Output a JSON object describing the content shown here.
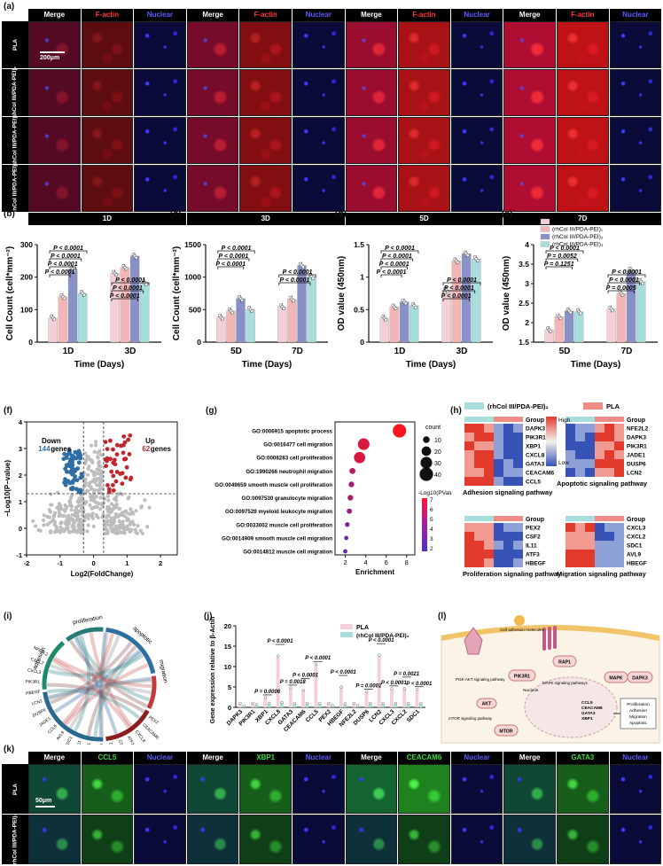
{
  "panel_letters": {
    "a": "(a)",
    "b": "(b)",
    "c": "(c)",
    "d": "(d)",
    "e": "(e)",
    "f": "(f)",
    "g": "(g)",
    "h": "(h)",
    "i": "(i)",
    "j": "(j)",
    "k": "(k)",
    "l": "(l)"
  },
  "panel_a": {
    "headers": [
      "Merge",
      "F-actin",
      "Nuclear",
      "Merge",
      "F-actin",
      "Nuclear",
      "Merge",
      "F-actin",
      "Nuclear",
      "Merge",
      "F-actin",
      "Nuclear"
    ],
    "rows": [
      "PLA",
      "(rhCol III/PDA-PEI)₁",
      "(rhCol III/PDA-PEI)₂",
      "(rhCol III/PDA-PEI)₃"
    ],
    "days": [
      "1D",
      "3D",
      "5D",
      "7D"
    ],
    "scale": "200μm"
  },
  "panel_k": {
    "headers": [
      "Merge",
      "CCL5",
      "Nuclear",
      "Merge",
      "XBP1",
      "Nuclear",
      "Merge",
      "CEACAM6",
      "Nuclear",
      "Merge",
      "GATA3",
      "Nuclear"
    ],
    "rows": [
      "PLA",
      "(rhCol III/PDA-PEI)₂"
    ],
    "scale": "50μm"
  },
  "chart_data": [
    {
      "type": "bar",
      "id": "b",
      "ylabel": "Cell Count (cell*mm⁻²)",
      "xlabel": "Time (Days)",
      "categories": [
        "1D",
        "3D"
      ],
      "ylim": [
        0,
        300
      ],
      "yticks": [
        0,
        100,
        200,
        300
      ],
      "series": [
        {
          "name": "PLA",
          "values": [
            75,
            212
          ]
        },
        {
          "name": "(rhCol III/PDA-PEI)₁",
          "values": [
            140,
            230
          ]
        },
        {
          "name": "(rhCol III/PDA-PEI)₂",
          "values": [
            225,
            265
          ]
        },
        {
          "name": "(rhCol III/PDA-PEI)₃",
          "values": [
            150,
            183
          ]
        }
      ],
      "pvalues": [
        "P < 0.0001",
        "P < 0.0001",
        "P < 0.0001",
        "P < 0.0001",
        "P < 0.0001",
        "P < 0.0001",
        "P < 0.0001"
      ]
    },
    {
      "type": "bar",
      "id": "c",
      "ylabel": "Cell Count (cell*mm⁻²)",
      "xlabel": "Time (Days)",
      "categories": [
        "5D",
        "7D"
      ],
      "ylim": [
        0,
        1500
      ],
      "yticks": [
        0,
        500,
        1000,
        1500
      ],
      "series": [
        {
          "name": "PLA",
          "values": [
            385,
            545
          ]
        },
        {
          "name": "(rhCol III/PDA-PEI)₁",
          "values": [
            480,
            660
          ]
        },
        {
          "name": "(rhCol III/PDA-PEI)₂",
          "values": [
            670,
            1180
          ]
        },
        {
          "name": "(rhCol III/PDA-PEI)₃",
          "values": [
            505,
            1010
          ]
        }
      ],
      "pvalues": [
        "P < 0.0001",
        "P < 0.0001",
        "P < 0.0001",
        "P < 0.0001",
        "P < 0.0001"
      ]
    },
    {
      "type": "bar",
      "id": "d",
      "ylabel": "OD value (450nm)",
      "xlabel": "Time (Days)",
      "categories": [
        "1D",
        "3D"
      ],
      "ylim": [
        0.0,
        1.5
      ],
      "yticks": [
        0.0,
        0.5,
        1.0,
        1.5
      ],
      "series": [
        {
          "name": "PLA",
          "values": [
            0.37,
            0.8
          ]
        },
        {
          "name": "(rhCol III/PDA-PEI)₁",
          "values": [
            0.54,
            1.25
          ]
        },
        {
          "name": "(rhCol III/PDA-PEI)₂",
          "values": [
            0.62,
            1.36
          ]
        },
        {
          "name": "(rhCol III/PDA-PEI)₃",
          "values": [
            0.56,
            1.28
          ]
        }
      ],
      "pvalues": [
        "P < 0.0001",
        "P < 0.0001",
        "P < 0.0001",
        "P < 0.0001",
        "P < 0.0001",
        "P < 0.0001",
        "P < 0.0001"
      ]
    },
    {
      "type": "bar",
      "id": "e",
      "ylabel": "OD value (450nm)",
      "xlabel": "Time (Days)",
      "categories": [
        "5D",
        "7D"
      ],
      "ylim": [
        1.5,
        4.0
      ],
      "yticks": [
        1.5,
        2.0,
        2.5,
        3.0,
        3.5,
        4.0
      ],
      "legend": [
        "PLA",
        "(rhCol III/PDA-PEI)₁",
        "(rhCol III/PDA-PEI)₂",
        "(rhCol III/PDA-PEI)₃"
      ],
      "series": [
        {
          "name": "PLA",
          "values": [
            1.82,
            2.35
          ]
        },
        {
          "name": "(rhCol III/PDA-PEI)₁",
          "values": [
            2.15,
            2.75
          ]
        },
        {
          "name": "(rhCol III/PDA-PEI)₂",
          "values": [
            2.3,
            3.35
          ]
        },
        {
          "name": "(rhCol III/PDA-PEI)₃",
          "values": [
            2.28,
            3.05
          ]
        }
      ],
      "pvalues": [
        "P < 0.0001",
        "P = 0.0052",
        "P = 0.1251",
        "P < 0.0001",
        "P < 0.0001",
        "P = 0.0005"
      ]
    },
    {
      "type": "scatter",
      "id": "f",
      "xlabel": "Log2(FoldChange)",
      "ylabel": "−Log10(P−value)",
      "xlim": [
        -2,
        2.5
      ],
      "ylim": [
        -1,
        4
      ],
      "xticks": [
        "-2",
        "-1",
        "0",
        "1",
        "2"
      ],
      "yticks": [
        "-1",
        "0",
        "1",
        "2",
        "3",
        "4"
      ],
      "down_label": "Down",
      "down_count": "144",
      "up_label": "Up",
      "up_count": "62",
      "genes": "genes"
    },
    {
      "type": "scatter",
      "id": "g",
      "xlabel": "Enrichment",
      "xticks": [
        "2",
        "4",
        "6",
        "8"
      ],
      "terms": [
        {
          "label": "GO:0006915 apoptotic process",
          "x": 7.3,
          "count": 40,
          "p": 7
        },
        {
          "label": "GO:0016477 cell migration",
          "x": 3.8,
          "count": 30,
          "p": 6
        },
        {
          "label": "GO:0008283 cell proliferation",
          "x": 3.4,
          "count": 28,
          "p": 6
        },
        {
          "label": "GO:1990266 neutrophil migration",
          "x": 2.7,
          "count": 8,
          "p": 5
        },
        {
          "label": "GO:0049659 smooth muscle cell proliferation",
          "x": 2.6,
          "count": 7,
          "p": 4.5
        },
        {
          "label": "GO:0097530 granulocyte migration",
          "x": 2.5,
          "count": 7,
          "p": 4.5
        },
        {
          "label": "GO:0097529 myeloid leukocyte migration",
          "x": 2.4,
          "count": 6,
          "p": 4
        },
        {
          "label": "GO:0033002 muscle cell proliferation",
          "x": 2.2,
          "count": 5,
          "p": 3.5
        },
        {
          "label": "GO:0014909 smooth muscle cell migration",
          "x": 2.1,
          "count": 4,
          "p": 3
        },
        {
          "label": "GO:0014812 muscle cell migration",
          "x": 2.0,
          "count": 4,
          "p": 2.5
        }
      ],
      "size_legend_title": "count",
      "size_legend": [
        "10",
        "20",
        "30",
        "40"
      ],
      "color_legend_title": "-Log10(PValue)",
      "color_legend": [
        "7",
        "6",
        "5",
        "4",
        "3",
        "2"
      ]
    },
    {
      "type": "heatmap",
      "id": "h",
      "legend_groups": [
        "(rhCol III/PDA-PEI)₂",
        "PLA"
      ],
      "scale_high": "High",
      "scale_low": "Low",
      "group_label": "Group",
      "blocks": [
        {
          "title": "Adhesion signaling pathway",
          "genes": [
            "DAPK3",
            "PIK3R1",
            "XBP1",
            "CXCL8",
            "GATA3",
            "CEACAM6",
            "CCL5"
          ]
        },
        {
          "title": "Apoptotic signaling pathway",
          "genes": [
            "NFE2L2",
            "DAPK3",
            "PIK3R1",
            "JADE1",
            "DUSP6",
            "LCN2"
          ]
        },
        {
          "title": "Proliferation signaling pathway",
          "genes": [
            "PEX2",
            "CSF2",
            "IL11",
            "ATF3",
            "HBEGF"
          ]
        },
        {
          "title": "Migration signaling pathway",
          "genes": [
            "CXCL3",
            "CXCL2",
            "SDC1",
            "AVL9",
            "HBEGF"
          ]
        }
      ]
    },
    {
      "type": "other",
      "id": "i",
      "chart": "chord",
      "sectors": [
        "proliferation",
        "apoptotic",
        "migration",
        "adhesion"
      ],
      "genes": [
        "PEX2",
        "CEACAM6",
        "CXCL8",
        "ATF3",
        "CSF2",
        "DAPK3",
        "GATA3",
        "XBP1",
        "IL11",
        "SDC1",
        "AVL9",
        "CCL5",
        "JADE1",
        "DUSP6",
        "LCN2",
        "HBEGF",
        "PIK3R1",
        "CXCL3",
        "CXCL2",
        "NFE2L2"
      ]
    },
    {
      "type": "bar",
      "id": "j",
      "ylabel": "Gene expression relative to β-Actin",
      "ylim": [
        0,
        20
      ],
      "yticks": [
        0,
        5,
        10,
        15,
        20
      ],
      "categories": [
        "DAPK3",
        "PIK3R1",
        "XBP1",
        "CXCL8",
        "GATA3",
        "CEACAM6",
        "CCL5",
        "PEX2",
        "HBEGF",
        "NFE2L2",
        "DUSP6",
        "LCN2",
        "CXCL3",
        "CXCL2",
        "SDC1"
      ],
      "series": [
        {
          "name": "PLA",
          "values": [
            1.0,
            1.0,
            2.4,
            12.6,
            4.8,
            4.2,
            10.6,
            1.0,
            5.0,
            1.0,
            3.8,
            12.8,
            4.6,
            4.6,
            4.4
          ]
        },
        {
          "name": "(rhCol III/PDA-PEI)₂",
          "values": [
            0.4,
            0.7,
            1.0,
            1.2,
            1.0,
            1.0,
            1.0,
            0.5,
            0.9,
            0.5,
            1.0,
            1.0,
            1.0,
            1.0,
            1.0
          ]
        }
      ],
      "pvalues": [
        "P = 0.0006",
        "P < 0.0001",
        "P = 0.0018",
        "P < 0.0001",
        "P < 0.0001",
        "P < 0.0001",
        "P = 0.0001",
        "P < 0.0001",
        "P < 0.0001",
        "P = 0.0021",
        "P < 0.0001"
      ]
    }
  ],
  "panel_l": {
    "labels": [
      "Cell adhesion molecules",
      "PI3K-AKT signaling pathway",
      "PIK3R1",
      "MAPK signaling pathways",
      "RAP1",
      "MAPK",
      "DAPK3",
      "Nucleus",
      "AKT",
      "mTOR signaling pathway",
      "MTOR",
      "CCL5",
      "CEACAM6",
      "GATA3",
      "XBP1",
      "Proliferation",
      "Adhesion",
      "Migration",
      "Apoptotic"
    ]
  },
  "colors": {
    "PLA": "#f3d0d8",
    "g1": "#f3b6b6",
    "g2": "#8891c7",
    "g3": "#a7ddda",
    "up": "#c0272d",
    "down": "#2e6da4",
    "neutral": "#bdbdbd",
    "heat_high": "#e23b2e",
    "heat_low": "#3653b5",
    "heat_mid": "#f4f1ef"
  }
}
